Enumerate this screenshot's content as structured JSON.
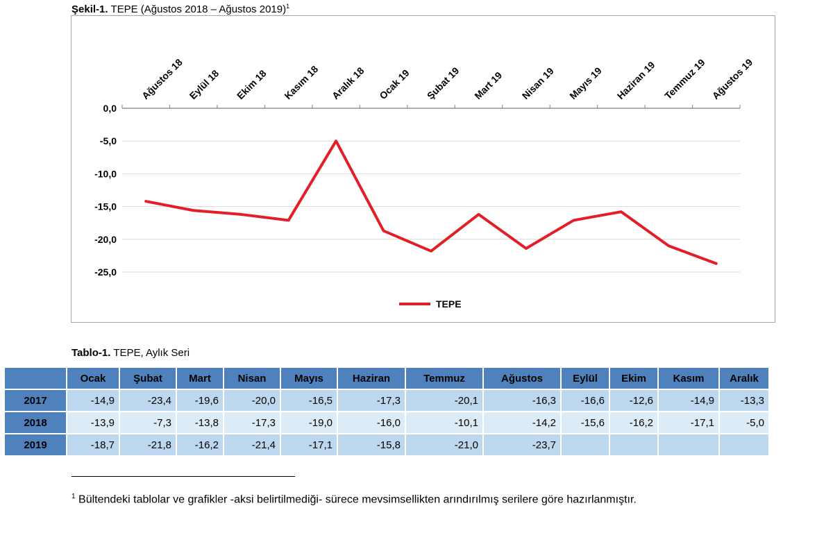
{
  "figure": {
    "label": "Şekil-1.",
    "caption": "TEPE (Ağustos 2018 – Ağustos 2019)",
    "note_mark": "1"
  },
  "chart_data": {
    "type": "line",
    "categories": [
      "Ağustos 18",
      "Eylül 18",
      "Ekim 18",
      "Kasım 18",
      "Aralık 18",
      "Ocak 19",
      "Şubat 19",
      "Mart 19",
      "Nisan 19",
      "Mayıs 19",
      "Haziran 19",
      "Temmuz 19",
      "Ağustos 19"
    ],
    "series": [
      {
        "name": "TEPE",
        "color": "#e41e26",
        "values": [
          -14.2,
          -15.6,
          -16.2,
          -17.1,
          -5.0,
          -18.7,
          -21.8,
          -16.2,
          -21.4,
          -17.1,
          -15.8,
          -21.0,
          -23.7
        ]
      }
    ],
    "ylim": [
      -25,
      0
    ],
    "yticks": [
      0,
      -5,
      -10,
      -15,
      -20,
      -25
    ],
    "ytick_labels": [
      "0,0",
      "-5,0",
      "-10,0",
      "-15,0",
      "-20,0",
      "-25,0"
    ],
    "grid": true,
    "legend": "bottom",
    "xaxis_position": "top"
  },
  "table": {
    "label": "Tablo-1.",
    "caption": "TEPE, Aylık Seri",
    "columns": [
      "Ocak",
      "Şubat",
      "Mart",
      "Nisan",
      "Mayıs",
      "Haziran",
      "Temmuz",
      "Ağustos",
      "Eylül",
      "Ekim",
      "Kasım",
      "Aralık"
    ],
    "rows": [
      {
        "year": "2017",
        "values": [
          "-14,9",
          "-23,4",
          "-19,6",
          "-20,0",
          "-16,5",
          "-17,3",
          "-20,1",
          "-16,3",
          "-16,6",
          "-12,6",
          "-14,9",
          "-13,3"
        ]
      },
      {
        "year": "2018",
        "values": [
          "-13,9",
          "-7,3",
          "-13,8",
          "-17,3",
          "-19,0",
          "-16,0",
          "-10,1",
          "-14,2",
          "-15,6",
          "-16,2",
          "-17,1",
          "-5,0"
        ]
      },
      {
        "year": "2019",
        "values": [
          "-18,7",
          "-21,8",
          "-16,2",
          "-21,4",
          "-17,1",
          "-15,8",
          "-21,0",
          "-23,7",
          "",
          "",
          "",
          ""
        ]
      }
    ]
  },
  "footnote": {
    "mark": "1",
    "text": "Bültendeki tablolar ve grafikler -aksi belirtilmediği- sürece mevsimsellikten arındırılmış serilere göre hazırlanmıştır."
  }
}
